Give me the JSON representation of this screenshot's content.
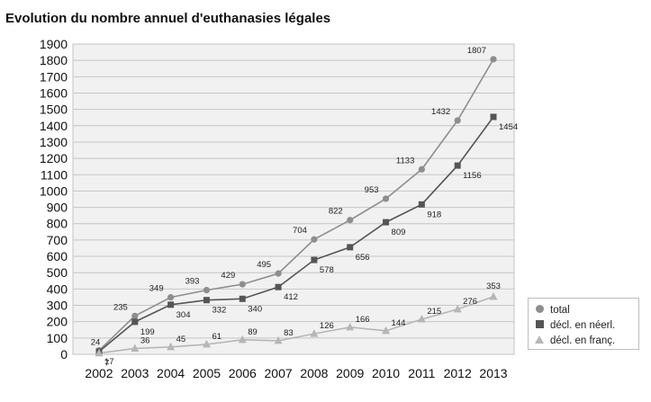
{
  "chart_data": {
    "type": "line",
    "title": "Evolution du nombre annuel d'euthanasies légales",
    "xlabel": "",
    "ylabel": "",
    "categories": [
      "2002",
      "2003",
      "2004",
      "2005",
      "2006",
      "2007",
      "2008",
      "2009",
      "2010",
      "2011",
      "2012",
      "2013"
    ],
    "ylim": [
      0,
      1900
    ],
    "yticks": [
      "0",
      "100",
      "200",
      "300",
      "400",
      "500",
      "600",
      "700",
      "800",
      "900",
      "1000",
      "1100",
      "1200",
      "1300",
      "1400",
      "1500",
      "1600",
      "1700",
      "1800",
      "1900"
    ],
    "grid": true,
    "legend_position": "bottom-right",
    "series": [
      {
        "name": "total",
        "marker": "circle",
        "color": "#8e8e8e",
        "values": [
          24,
          235,
          349,
          393,
          429,
          495,
          704,
          822,
          953,
          1133,
          1432,
          1807
        ]
      },
      {
        "name": "décl. en néerl.",
        "marker": "square",
        "color": "#555555",
        "values": [
          17,
          199,
          304,
          332,
          340,
          412,
          578,
          656,
          809,
          918,
          1156,
          1454
        ]
      },
      {
        "name": "décl. en franç.",
        "marker": "triangle",
        "color": "#b6b6b6",
        "values": [
          7,
          36,
          45,
          61,
          89,
          83,
          126,
          166,
          144,
          215,
          276,
          353
        ]
      }
    ]
  }
}
